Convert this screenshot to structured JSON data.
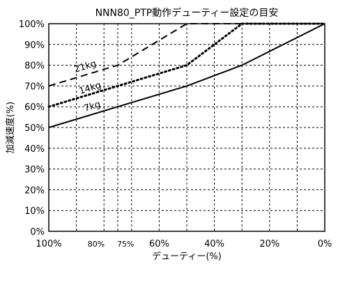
{
  "chart_data": {
    "type": "line",
    "title": "NNN80_PTP動作デューティー設定の目安",
    "xlabel": "デューティー(%)",
    "ylabel": "加減速度(%)",
    "xlim": [
      100,
      0
    ],
    "ylim": [
      0,
      100
    ],
    "x_ticks": [
      {
        "value": 100,
        "label": "100%"
      },
      {
        "value": 80,
        "label": "80%"
      },
      {
        "value": 75,
        "label": "75%"
      },
      {
        "value": 60,
        "label": "60%"
      },
      {
        "value": 40,
        "label": "40%"
      },
      {
        "value": 20,
        "label": "20%"
      },
      {
        "value": 0,
        "label": "0%"
      }
    ],
    "x_grid": [
      90,
      80,
      75,
      70,
      60,
      50,
      40,
      30,
      20,
      10
    ],
    "y_ticks": [
      {
        "value": 0,
        "label": "0%"
      },
      {
        "value": 10,
        "label": "10%"
      },
      {
        "value": 20,
        "label": "20%"
      },
      {
        "value": 30,
        "label": "30%"
      },
      {
        "value": 40,
        "label": "40%"
      },
      {
        "value": 50,
        "label": "50%"
      },
      {
        "value": 60,
        "label": "60%"
      },
      {
        "value": 70,
        "label": "70%"
      },
      {
        "value": 80,
        "label": "80%"
      },
      {
        "value": 90,
        "label": "90%"
      },
      {
        "value": 100,
        "label": "100%"
      }
    ],
    "grid": true,
    "series": [
      {
        "name": "21kg",
        "style": "dashed",
        "color": "#000000",
        "x": [
          100,
          75,
          50,
          0
        ],
        "y": [
          70,
          80,
          100,
          100
        ]
      },
      {
        "name": "14kg",
        "style": "dotted",
        "color": "#000000",
        "x": [
          100,
          75,
          50,
          30,
          0
        ],
        "y": [
          60,
          70,
          80,
          100,
          100
        ]
      },
      {
        "name": "7kg",
        "style": "solid",
        "color": "#000000",
        "x": [
          100,
          75,
          50,
          30,
          0
        ],
        "y": [
          50,
          60,
          70,
          80,
          100
        ]
      }
    ]
  }
}
